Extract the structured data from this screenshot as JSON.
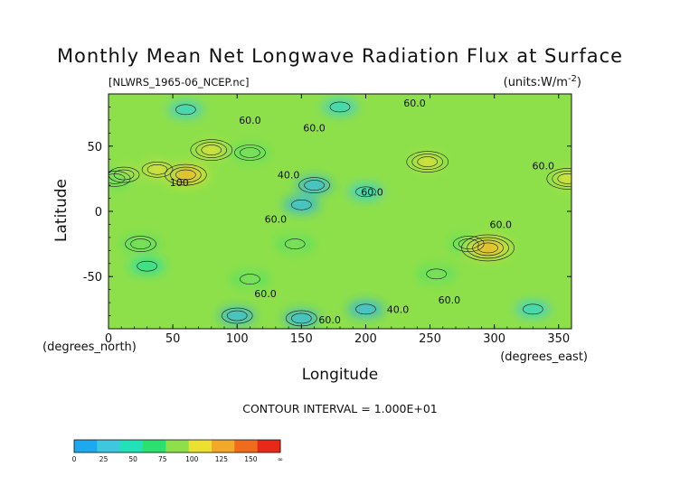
{
  "chart_data": {
    "type": "heatmap",
    "title": "Monthly Mean Net Longwave Radiation Flux at Surface",
    "subtitle_left": "[NLWRS_1965-06_NCEP.nc]",
    "subtitle_right": "(units:W/m^-2)",
    "xlabel": "Longitude",
    "ylabel": "Latitude",
    "x_unit_note": "(degrees_east)",
    "y_unit_note": "(degrees_north)",
    "xlim": [
      0,
      360
    ],
    "ylim": [
      -90,
      90
    ],
    "x_ticks": [
      0,
      50,
      100,
      150,
      200,
      250,
      300,
      350
    ],
    "y_ticks": [
      -50,
      0,
      50
    ],
    "contour_interval_text": "CONTOUR INTERVAL = 1.000E+01",
    "contour_labels": [
      {
        "text": "60.0",
        "lon": 110,
        "lat": 70
      },
      {
        "text": "60.0",
        "lon": 160,
        "lat": 64
      },
      {
        "text": "60.0",
        "lon": 238,
        "lat": 83
      },
      {
        "text": "60.0",
        "lon": 338,
        "lat": 35
      },
      {
        "text": "60.0",
        "lon": 205,
        "lat": 15
      },
      {
        "text": "60.0",
        "lon": 130,
        "lat": -6
      },
      {
        "text": "60.0",
        "lon": 305,
        "lat": -10
      },
      {
        "text": "60.0",
        "lon": 122,
        "lat": -63
      },
      {
        "text": "60.0",
        "lon": 265,
        "lat": -68
      },
      {
        "text": "60.0",
        "lon": 172,
        "lat": -83
      },
      {
        "text": "40.0",
        "lon": 225,
        "lat": -75
      },
      {
        "text": "40.0",
        "lon": 140,
        "lat": 28
      },
      {
        "text": "100",
        "lon": 55,
        "lat": 22
      }
    ],
    "colorbar": {
      "tick_labels": [
        "0",
        "25",
        "50",
        "75",
        "100",
        "125",
        "150",
        "∞"
      ],
      "colors": [
        "#1ea8f0",
        "#3ec8e0",
        "#22e0b8",
        "#2ce070",
        "#8ee04a",
        "#ece030",
        "#f2a828",
        "#ee6c1c",
        "#e82818"
      ]
    },
    "features": [
      {
        "lon": 60,
        "lat": 28,
        "value": 120
      },
      {
        "lon": 38,
        "lat": 32,
        "value": 100
      },
      {
        "lon": 12,
        "lat": 28,
        "value": 100
      },
      {
        "lon": 80,
        "lat": 47,
        "value": 110
      },
      {
        "lon": 110,
        "lat": 45,
        "value": 95
      },
      {
        "lon": 248,
        "lat": 38,
        "value": 115
      },
      {
        "lon": 357,
        "lat": 25,
        "value": 110
      },
      {
        "lon": 5,
        "lat": 25,
        "value": 95
      },
      {
        "lon": 145,
        "lat": -25,
        "value": 85
      },
      {
        "lon": 280,
        "lat": -25,
        "value": 90
      },
      {
        "lon": 25,
        "lat": -25,
        "value": 90
      },
      {
        "lon": 295,
        "lat": -28,
        "value": 130
      },
      {
        "lon": 110,
        "lat": -52,
        "value": 80
      },
      {
        "lon": 255,
        "lat": -48,
        "value": 85
      },
      {
        "lon": 30,
        "lat": -42,
        "value": 70
      },
      {
        "lon": 160,
        "lat": 20,
        "value": 30
      },
      {
        "lon": 200,
        "lat": 15,
        "value": 40
      },
      {
        "lon": 150,
        "lat": 5,
        "value": 35
      },
      {
        "lon": 180,
        "lat": 80,
        "value": 40
      },
      {
        "lon": 60,
        "lat": 78,
        "value": 40
      },
      {
        "lon": 200,
        "lat": -75,
        "value": 35
      },
      {
        "lon": 150,
        "lat": -82,
        "value": 30
      },
      {
        "lon": 100,
        "lat": -80,
        "value": 30
      },
      {
        "lon": 330,
        "lat": -75,
        "value": 40
      }
    ]
  }
}
